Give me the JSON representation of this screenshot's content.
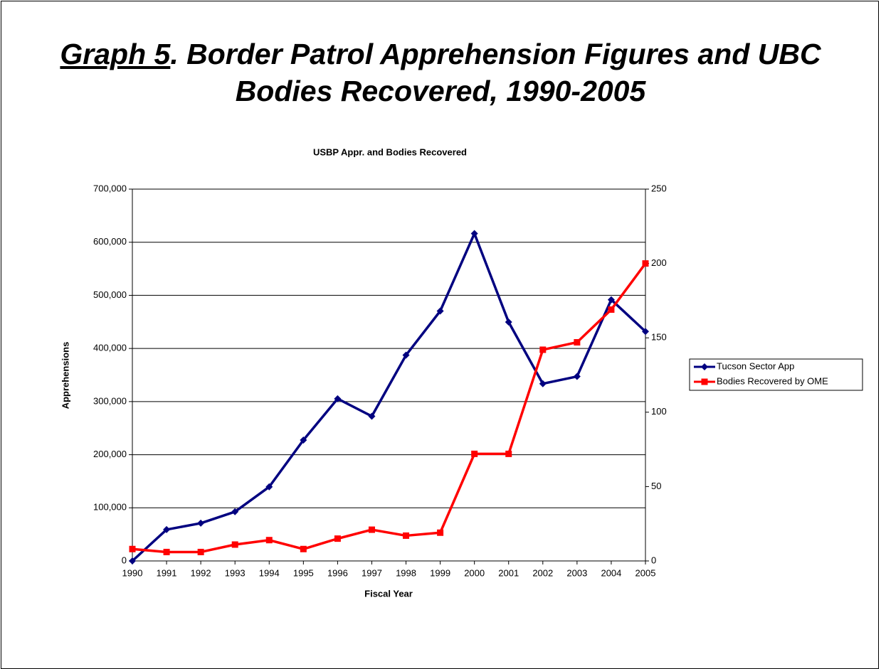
{
  "chart_data": {
    "type": "line",
    "heading": {
      "label": "Graph 5",
      "text": ". Border Patrol Apprehension Figures and UBC Bodies Recovered, 1990-2005"
    },
    "title": "USBP Appr. and Bodies Recovered",
    "xlabel": "Fiscal Year",
    "ylabel": "Apprehensions",
    "categories": [
      "1990",
      "1991",
      "1992",
      "1993",
      "1994",
      "1995",
      "1996",
      "1997",
      "1998",
      "1999",
      "2000",
      "2001",
      "2002",
      "2003",
      "2004",
      "2005"
    ],
    "series": [
      {
        "name": "Tucson Sector App",
        "color": "#000080",
        "marker": "diamond",
        "values": [
          0,
          59000,
          71036,
          92639,
          139473,
          227529,
          305348,
          272397,
          387406,
          470449,
          616346,
          449675,
          333648,
          347263,
          491771,
          432000
        ]
      },
      {
        "name": "Bodies Recovered by OME",
        "color": "#ff0000",
        "marker": "square",
        "axis": "y2",
        "values": [
          8,
          6,
          6,
          11,
          14,
          8,
          15,
          21,
          17,
          19,
          72,
          72,
          142,
          147,
          169,
          200
        ]
      }
    ],
    "ylim": [
      0,
      700000
    ],
    "yticks": [
      0,
      {
        "value": 100000,
        "label": "100,000"
      },
      {
        "value": 200000,
        "label": "200,000"
      },
      {
        "value": 300000,
        "label": "300,000"
      },
      {
        "value": 400000,
        "label": "400,000"
      },
      {
        "value": 500000,
        "label": "500,000"
      },
      {
        "value": 600000,
        "label": "600,000"
      },
      {
        "value": 700000,
        "label": "700,000"
      }
    ],
    "y2lim": [
      0,
      250
    ],
    "y2ticks": [
      0,
      50,
      100,
      150,
      200,
      250
    ],
    "grid": true,
    "legend": "right"
  }
}
